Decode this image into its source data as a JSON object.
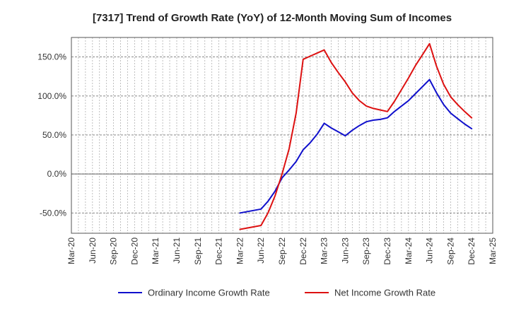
{
  "chart_data": {
    "type": "line",
    "title": "[7317]  Trend of Growth Rate (YoY) of 12-Month Moving Sum of Incomes",
    "xlabel": "",
    "ylabel": "",
    "x_ticks": [
      "Mar-20",
      "Jun-20",
      "Sep-20",
      "Dec-20",
      "Mar-21",
      "Jun-21",
      "Sep-21",
      "Dec-21",
      "Mar-22",
      "Jun-22",
      "Sep-22",
      "Dec-22",
      "Mar-23",
      "Jun-23",
      "Sep-23",
      "Dec-23",
      "Mar-24",
      "Jun-24",
      "Sep-24",
      "Dec-24",
      "Mar-25"
    ],
    "x_range": [
      "Mar-20",
      "Mar-25"
    ],
    "y_ticks": [
      -50,
      0,
      50,
      100,
      150
    ],
    "y_tick_labels": [
      "-50.0%",
      "0.0%",
      "50.0%",
      "100.0%",
      "150.0%"
    ],
    "ylim": [
      -76,
      175
    ],
    "grid": true,
    "legend_position": "bottom",
    "series": [
      {
        "name": "Ordinary Income Growth Rate",
        "color": "#1010cc",
        "x": [
          "Mar-22",
          "Jun-22",
          "Jul-22",
          "Aug-22",
          "Sep-22",
          "Oct-22",
          "Nov-22",
          "Dec-22",
          "Jan-23",
          "Feb-23",
          "Mar-23",
          "Apr-23",
          "May-23",
          "Jun-23",
          "Jul-23",
          "Aug-23",
          "Sep-23",
          "Oct-23",
          "Nov-23",
          "Dec-23",
          "Jan-24",
          "Feb-24",
          "Mar-24",
          "Apr-24",
          "May-24",
          "Jun-24",
          "Jul-24",
          "Aug-24",
          "Sep-24",
          "Oct-24",
          "Nov-24",
          "Dec-24"
        ],
        "values": [
          -50,
          -45,
          -35,
          -22,
          -5,
          5,
          16,
          31,
          40,
          51,
          65,
          59,
          54,
          49,
          56,
          62,
          67,
          69,
          70,
          72,
          80,
          87,
          94,
          103,
          112,
          121,
          104,
          89,
          78,
          71,
          64,
          58
        ]
      },
      {
        "name": "Net Income Growth Rate",
        "color": "#dd1111",
        "x": [
          "Mar-22",
          "Jun-22",
          "Jul-22",
          "Aug-22",
          "Sep-22",
          "Oct-22",
          "Nov-22",
          "Dec-22",
          "Jan-23",
          "Feb-23",
          "Mar-23",
          "Apr-23",
          "May-23",
          "Jun-23",
          "Jul-23",
          "Aug-23",
          "Sep-23",
          "Oct-23",
          "Nov-23",
          "Dec-23",
          "Jan-24",
          "Feb-24",
          "Mar-24",
          "Apr-24",
          "May-24",
          "Jun-24",
          "Jul-24",
          "Aug-24",
          "Sep-24",
          "Oct-24",
          "Nov-24",
          "Dec-24"
        ],
        "values": [
          -71,
          -66,
          -50,
          -28,
          0,
          32,
          78,
          147,
          151,
          155,
          159,
          143,
          130,
          118,
          104,
          94,
          87,
          84,
          82,
          80,
          93,
          108,
          123,
          139,
          153,
          167,
          138,
          115,
          99,
          89,
          80,
          72
        ]
      }
    ]
  }
}
